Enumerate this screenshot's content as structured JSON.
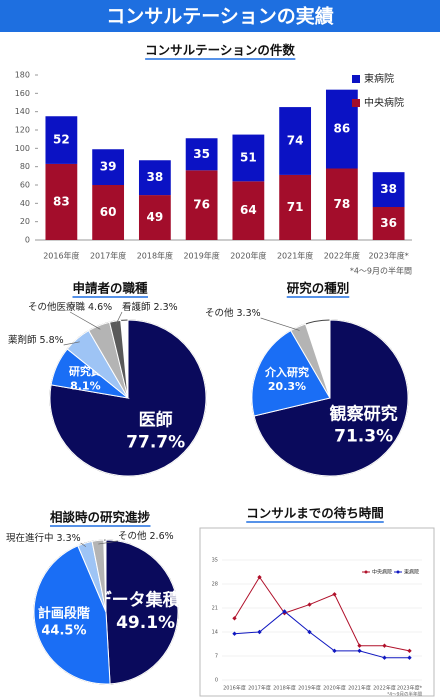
{
  "title": "コンサルテーションの実績",
  "chart_data": [
    {
      "type": "bar",
      "stacked": true,
      "title": "コンサルテーションの件数",
      "categories": [
        "2016年度",
        "2017年度",
        "2018年度",
        "2019年度",
        "2020年度",
        "2021年度",
        "2022年度",
        "2023年度*"
      ],
      "series": [
        {
          "name": "中央病院",
          "color": "#a30d2b",
          "values": [
            83,
            60,
            49,
            76,
            64,
            71,
            78,
            36
          ]
        },
        {
          "name": "東病院",
          "color": "#0b12c4",
          "values": [
            52,
            39,
            38,
            35,
            51,
            74,
            86,
            38
          ]
        }
      ],
      "ylim": [
        0,
        180
      ],
      "yticks": [
        0,
        20,
        40,
        60,
        80,
        100,
        120,
        140,
        160,
        180
      ],
      "legend": "upper right",
      "note": "*4～9月の半年間"
    },
    {
      "type": "pie",
      "title": "申請者の職種",
      "categories": [
        "医師",
        "研究員",
        "薬剤師",
        "その他医療職",
        "看護師"
      ],
      "values": [
        77.7,
        8.1,
        5.8,
        4.6,
        2.3
      ],
      "value_labels": [
        "77.7%",
        "8.1%",
        "5.8%",
        "4.6%",
        "2.3%"
      ],
      "colors": [
        "#0a0a5c",
        "#1a6ef5",
        "#9ec4f5",
        "#b4b4b4",
        "#5a5a5a"
      ]
    },
    {
      "type": "pie",
      "title": "研究の種別",
      "categories": [
        "観察研究",
        "介入研究",
        "その他"
      ],
      "values": [
        71.3,
        20.3,
        3.3
      ],
      "value_labels": [
        "71.3%",
        "20.3%",
        "3.3%"
      ],
      "colors": [
        "#0a0a5c",
        "#1a6ef5",
        "#b4b4b4"
      ]
    },
    {
      "type": "pie",
      "title": "相談時の研究進捗",
      "categories": [
        "データ集積後",
        "計画段階",
        "現在進行中",
        "その他"
      ],
      "values": [
        49.1,
        44.5,
        3.3,
        2.6
      ],
      "value_labels": [
        "49.1%",
        "44.5%",
        "3.3%",
        "2.6%"
      ],
      "colors": [
        "#0a0a5c",
        "#1a6ef5",
        "#9ec4f5",
        "#b4b4b4"
      ]
    },
    {
      "type": "line",
      "title": "コンサルまでの待ち時間",
      "categories": [
        "2016年度",
        "2017年度",
        "2018年度",
        "2019年度",
        "2020年度",
        "2021年度",
        "2022年度",
        "2023年度*"
      ],
      "series": [
        {
          "name": "中央病院",
          "color": "#b0102a",
          "values": [
            18,
            30,
            19.5,
            22,
            25,
            10,
            10,
            8.5
          ]
        },
        {
          "name": "東病院",
          "color": "#1018c0",
          "values": [
            13.5,
            14,
            20,
            14,
            8.5,
            8.5,
            6.5,
            6.5
          ]
        }
      ],
      "ylim": [
        0,
        35
      ],
      "yticks": [
        0,
        7,
        14,
        21,
        28,
        35
      ],
      "legend": "upper right",
      "note": "*4～9月の半年間"
    }
  ]
}
